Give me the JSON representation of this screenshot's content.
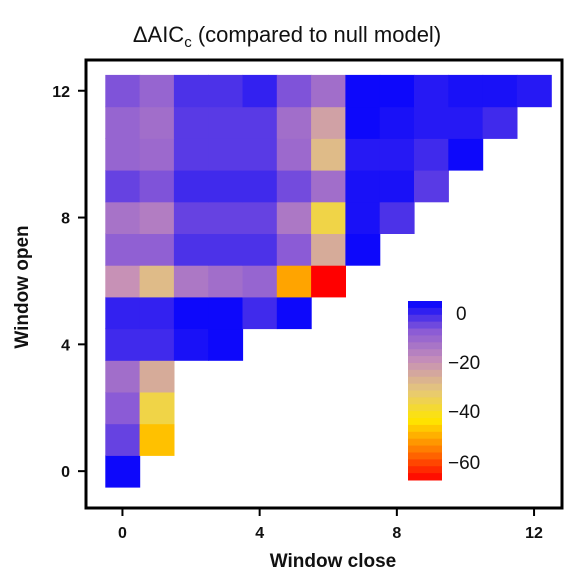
{
  "chart_data": {
    "type": "heatmap",
    "title_main": "ΔAIC",
    "title_sub": "c",
    "title_rest": " (compared to null model)",
    "xlabel": "Window close",
    "ylabel": "Window open",
    "x_ticks": [
      "0",
      "4",
      "8",
      "12"
    ],
    "y_ticks": [
      "0",
      "4",
      "8",
      "12"
    ],
    "xlim": [
      -0.5,
      12.5
    ],
    "ylim": [
      -0.5,
      12.5
    ],
    "colorbar": {
      "ticks": [
        "0",
        "−20",
        "−40",
        "−60"
      ],
      "tick_values": [
        0,
        -20,
        -40,
        -60
      ],
      "range": [
        -65,
        0
      ],
      "stops": [
        "#ff0000",
        "#ff7a00",
        "#ffe600",
        "#e6c87a",
        "#c68fb8",
        "#8a5ad6",
        "#0000ff"
      ]
    },
    "grid": false,
    "legend": "colorbar inside plot, right-center",
    "cells_by_open": [
      [
        -1
      ],
      [
        -8,
        -47
      ],
      [
        -11,
        -37
      ],
      [
        -15,
        -27
      ],
      [
        -5,
        -5,
        -2,
        -1
      ],
      [
        -4,
        -4,
        -1,
        -1,
        -5,
        -1
      ],
      [
        -22,
        -30,
        -17,
        -15,
        -13,
        -50,
        -65
      ],
      [
        -12,
        -12,
        -6,
        -6,
        -6,
        -11,
        -27,
        -1
      ],
      [
        -16,
        -18,
        -8,
        -8,
        -8,
        -17,
        -37,
        -2,
        -6
      ],
      [
        -8,
        -10,
        -5,
        -5,
        -5,
        -9,
        -15,
        -2,
        -2,
        -7
      ],
      [
        -13,
        -14,
        -7,
        -7,
        -7,
        -14,
        -30,
        -3,
        -3,
        -5,
        -1
      ],
      [
        -13,
        -15,
        -7,
        -7,
        -7,
        -15,
        -25,
        -1,
        -2,
        -3,
        -3,
        -5
      ],
      [
        -10,
        -13,
        -6,
        -6,
        -4,
        -10,
        -15,
        -1,
        -1,
        -3,
        -2,
        -2,
        -3
      ]
    ]
  }
}
